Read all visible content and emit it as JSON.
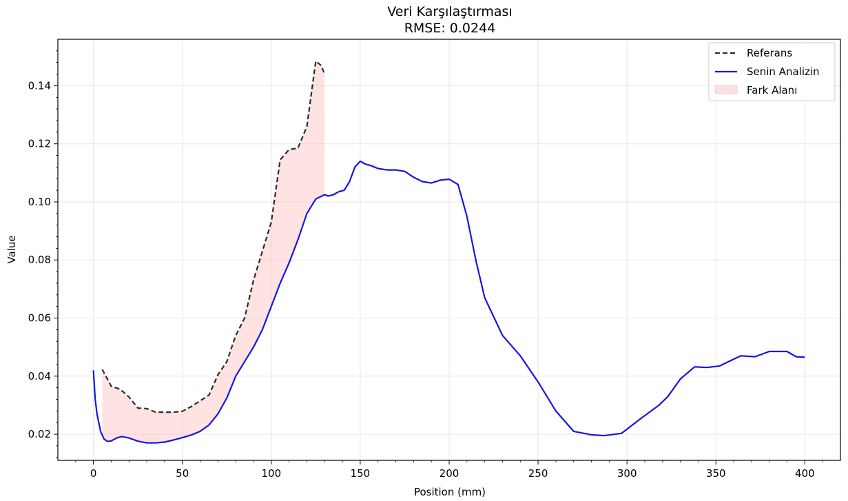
{
  "chart_data": {
    "type": "line",
    "title": "Veri Karşılaştırması",
    "subtitle": "RMSE: 0.0244",
    "xlabel": "Position (mm)",
    "ylabel": "Value",
    "xlim": [
      -20,
      420
    ],
    "ylim": [
      0.011,
      0.156
    ],
    "xticks": [
      0,
      50,
      100,
      150,
      200,
      250,
      300,
      350,
      400
    ],
    "yticks": [
      0.02,
      0.04,
      0.06,
      0.08,
      0.1,
      0.12,
      0.14
    ],
    "xtick_labels": [
      "0",
      "50",
      "100",
      "150",
      "200",
      "250",
      "300",
      "350",
      "400"
    ],
    "ytick_labels": [
      "0.02",
      "0.04",
      "0.06",
      "0.08",
      "0.10",
      "0.12",
      "0.14"
    ],
    "grid": true,
    "legend_position": "top-right",
    "legend": [
      "Referans",
      "Senin Analizin",
      "Fark Alanı"
    ],
    "colors": {
      "reference": "#2b2b2b",
      "analysis": "#1414e6",
      "fill": "#ffb3b3"
    },
    "series": [
      {
        "name": "Referans",
        "style": "dashed",
        "x": [
          5,
          10,
          15,
          20,
          25,
          30,
          35,
          40,
          45,
          50,
          55,
          60,
          65,
          70,
          75,
          80,
          85,
          90,
          95,
          100,
          105,
          110,
          115,
          120,
          125,
          128,
          130
        ],
        "y": [
          0.0423,
          0.0365,
          0.0355,
          0.0328,
          0.029,
          0.0288,
          0.0276,
          0.0276,
          0.0276,
          0.0279,
          0.0295,
          0.0315,
          0.0335,
          0.0405,
          0.045,
          0.054,
          0.06,
          0.073,
          0.083,
          0.093,
          0.1145,
          0.118,
          0.1185,
          0.126,
          0.1485,
          0.147,
          0.144
        ]
      },
      {
        "name": "Senin Analizin",
        "style": "solid",
        "x": [
          0,
          1,
          2,
          4,
          6,
          8,
          10,
          13,
          16,
          20,
          25,
          30,
          35,
          40,
          45,
          50,
          55,
          60,
          65,
          70,
          75,
          80,
          85,
          90,
          95,
          100,
          105,
          110,
          115,
          120,
          125,
          130,
          132,
          135,
          138,
          141,
          144,
          147,
          150,
          153,
          156,
          160,
          165,
          170,
          175,
          180,
          185,
          190,
          195,
          200,
          205,
          210,
          215,
          220,
          230,
          240,
          250,
          260,
          270,
          280,
          287,
          297,
          308,
          318,
          323,
          330,
          338,
          345,
          352,
          364,
          372,
          380,
          390,
          395,
          400
        ],
        "y": [
          0.042,
          0.032,
          0.027,
          0.021,
          0.0183,
          0.0175,
          0.0177,
          0.0187,
          0.0192,
          0.0187,
          0.0176,
          0.017,
          0.017,
          0.0173,
          0.018,
          0.0188,
          0.0197,
          0.021,
          0.0232,
          0.027,
          0.0325,
          0.04,
          0.045,
          0.05,
          0.056,
          0.064,
          0.072,
          0.079,
          0.087,
          0.096,
          0.101,
          0.1025,
          0.102,
          0.1025,
          0.1035,
          0.104,
          0.107,
          0.112,
          0.114,
          0.113,
          0.1125,
          0.1115,
          0.111,
          0.111,
          0.1105,
          0.1085,
          0.107,
          0.1065,
          0.1075,
          0.1078,
          0.106,
          0.095,
          0.08,
          0.067,
          0.054,
          0.047,
          0.038,
          0.028,
          0.021,
          0.0198,
          0.0195,
          0.0203,
          0.0255,
          0.03,
          0.033,
          0.039,
          0.0432,
          0.043,
          0.0435,
          0.047,
          0.0467,
          0.0485,
          0.0485,
          0.0467,
          0.0465
        ]
      }
    ]
  }
}
